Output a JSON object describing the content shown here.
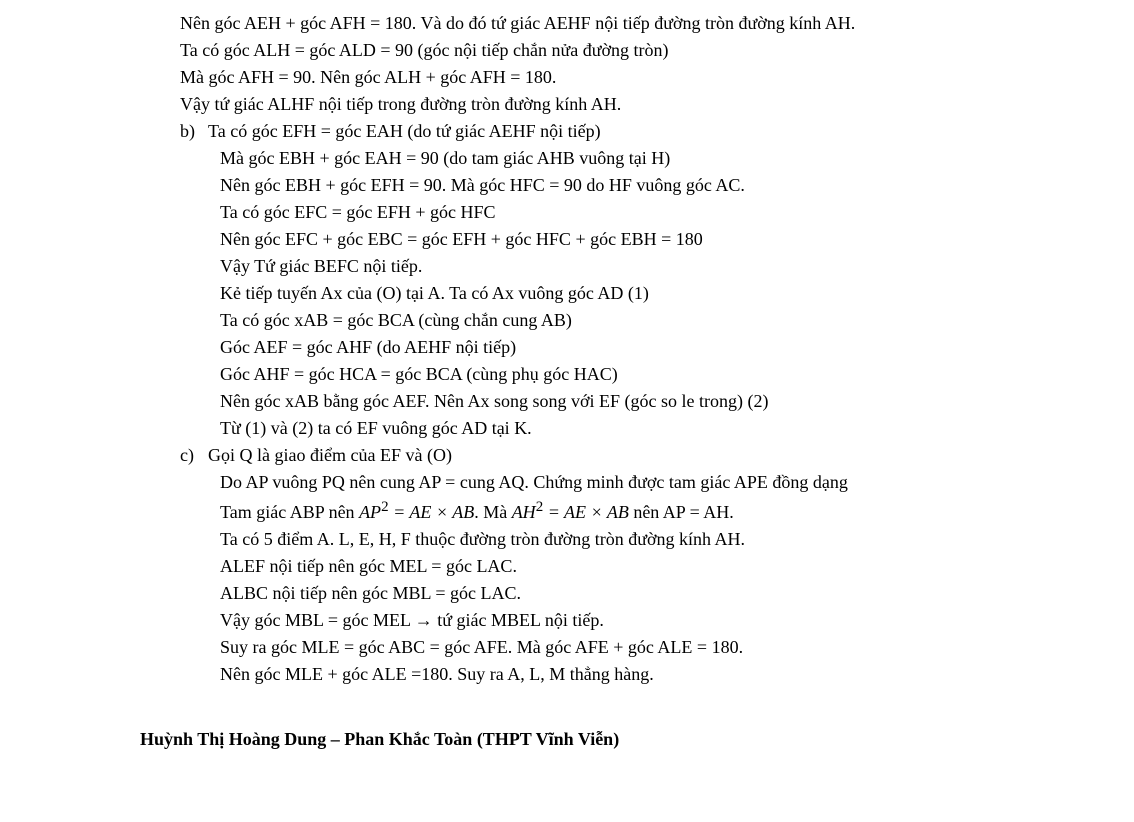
{
  "lines": {
    "p1": "Nên góc AEH + góc AFH = 180. Và do đó tứ giác AEHF nội tiếp đường tròn đường kính AH.",
    "p2": " Ta có góc ALH = góc ALD = 90 (góc nội tiếp chắn nửa đường tròn)",
    "p3": "Mà góc AFH = 90. Nên góc ALH + góc AFH = 180.",
    "p4": "Vậy tứ giác ALHF nội tiếp trong đường tròn đường kính AH.",
    "b_marker": "b)",
    "b1": "Ta có góc EFH = góc EAH (do tứ giác AEHF nội tiếp)",
    "b2": "Mà góc EBH + góc EAH = 90 (do tam giác AHB vuông tại H)",
    "b3": "Nên góc EBH + góc EFH = 90. Mà góc HFC = 90 do HF vuông góc AC.",
    "b4": "Ta có góc EFC = góc EFH + góc HFC",
    "b5": "Nên góc EFC + góc EBC = góc EFH + góc HFC + góc EBH = 180",
    "b6": "Vậy Tứ giác BEFC nội tiếp.",
    "b7": "Kẻ tiếp tuyến Ax của (O) tại A. Ta có Ax vuông góc AD (1)",
    "b8": "Ta có góc xAB = góc BCA (cùng chắn cung AB)",
    "b9": "Góc AEF = góc AHF (do AEHF nội tiếp)",
    "b10": "Góc AHF  = góc  HCA = góc BCA (cùng phụ góc HAC)",
    "b11": "Nên góc xAB bằng góc AEF. Nên Ax song song với EF (góc so le trong) (2)",
    "b12": "Từ (1) và (2) ta có EF vuông góc AD tại K.",
    "c_marker": "c)",
    "c1": "Gọi Q là giao điểm của EF và (O)",
    "c2": "Do AP vuông PQ nên cung AP = cung AQ. Chứng minh được tam giác APE đồng dạng",
    "c3a": "Tam giác ABP nên  ",
    "c3b": ". Mà  ",
    "c3c": "  nên AP = AH.",
    "eq1_base1": "AP",
    "eq1_exp": "2",
    "eq1_rhs": " = AE × AB",
    "eq2_base1": "AH",
    "eq2_exp": "2",
    "eq2_rhs": " = AE × AB",
    "c4": "Ta có 5 điểm A. L, E, H, F thuộc đường tròn đường tròn đường kính AH.",
    "c5": "ALEF nội tiếp nên góc MEL = góc LAC.",
    "c6": "ALBC nội tiếp nên góc MBL = góc LAC.",
    "c7": "Vậy góc MBL = góc MEL → tứ giác MBEL nội tiếp.",
    "c8": "Suy ra góc MLE = góc ABC = góc AFE. Mà góc AFE + góc ALE =  180.",
    "c9": "Nên góc MLE + góc ALE  =180. Suy ra A, L, M thẳng hàng.",
    "footer": "Huỳnh Thị Hoàng Dung – Phan Khắc Toàn  (THPT Vĩnh Viễn)"
  }
}
